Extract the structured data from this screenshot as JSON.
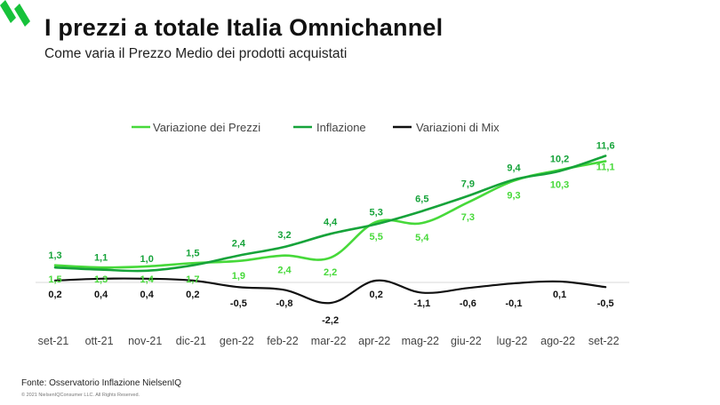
{
  "header": {
    "title": "I prezzi a totale Italia Omnichannel",
    "subtitle": "Come varia il Prezzo Medio dei prodotti acquistati"
  },
  "footer": {
    "source": "Fonte: Osservatorio Inflazione NielsenIQ",
    "copyright": "© 2021 NielsenIQConsumer LLC. All Rights Reserved."
  },
  "colors": {
    "prezzi": "#47d93a",
    "inflazione": "#16a33a",
    "mix": "#111111",
    "logo": "#17c23a"
  },
  "chart_data": {
    "type": "line",
    "categories": [
      "set-21",
      "ott-21",
      "nov-21",
      "dic-21",
      "gen-22",
      "feb-22",
      "mar-22",
      "apr-22",
      "mag-22",
      "giu-22",
      "lug-22",
      "ago-22",
      "set-22"
    ],
    "legend_position": "top",
    "grid": false,
    "series": [
      {
        "name": "Variazione dei Prezzi",
        "labels": [
          "1,5",
          "1,3",
          "1,4",
          "1,7",
          "1,9",
          "2,4",
          "2,2",
          "5,5",
          "5,4",
          "7,3",
          "9,3",
          "10,3",
          "11,1"
        ],
        "values": [
          1.5,
          1.3,
          1.4,
          1.7,
          1.9,
          2.4,
          2.2,
          5.5,
          5.4,
          7.3,
          9.3,
          10.3,
          11.1
        ]
      },
      {
        "name": "Inflazione",
        "labels": [
          "1,3",
          "1,1",
          "1,0",
          "1,5",
          "2,4",
          "3,2",
          "4,4",
          "5,3",
          "6,5",
          "7,9",
          "9,4",
          "10,2",
          "11,6"
        ],
        "values": [
          1.3,
          1.1,
          1.0,
          1.5,
          2.4,
          3.2,
          4.4,
          5.3,
          6.5,
          7.9,
          9.4,
          10.2,
          11.6
        ]
      },
      {
        "name": "Variazioni di Mix",
        "labels": [
          "0,2",
          "0,4",
          "0,4",
          "0,2",
          "-0,5",
          "-0,8",
          "-2,2",
          "0,2",
          "-1,1",
          "-0,6",
          "-0,1",
          "0,1",
          "-0,5"
        ],
        "values": [
          0.2,
          0.4,
          0.4,
          0.2,
          -0.5,
          -0.8,
          -2.2,
          0.2,
          -1.1,
          -0.6,
          -0.1,
          0.1,
          -0.5
        ]
      }
    ]
  }
}
